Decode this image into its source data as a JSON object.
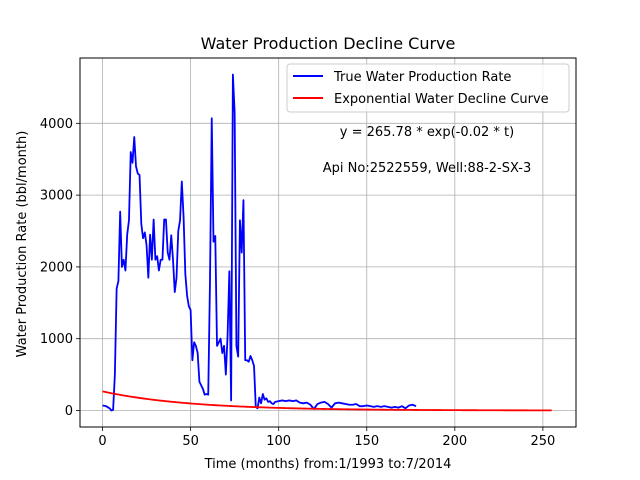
{
  "chart_data": {
    "type": "line",
    "title": "Water Production Decline Curve",
    "xlabel": "Time (months) from:1/1993 to:7/2014",
    "ylabel": "Water Production Rate (bbl/month)",
    "xlim": [
      -12.8,
      268.8
    ],
    "ylim": [
      -230,
      4910
    ],
    "xticks": [
      0,
      50,
      100,
      150,
      200,
      250
    ],
    "yticks": [
      0,
      1000,
      2000,
      3000,
      4000
    ],
    "grid": true,
    "legend_position": "top-right",
    "annotations": [
      "y = 265.78 * exp(-0.02 * t)",
      "Api No:2522559, Well:88-2-SX-3"
    ],
    "series": [
      {
        "name": "True Water Production Rate",
        "color": "#0000ff",
        "points": [
          [
            0,
            70
          ],
          [
            2,
            60
          ],
          [
            4,
            30
          ],
          [
            5,
            0
          ],
          [
            6,
            10
          ],
          [
            7,
            500
          ],
          [
            8,
            1700
          ],
          [
            9,
            1800
          ],
          [
            10,
            2770
          ],
          [
            11,
            2000
          ],
          [
            12,
            2100
          ],
          [
            13,
            1950
          ],
          [
            14,
            2450
          ],
          [
            15,
            2650
          ],
          [
            16,
            3600
          ],
          [
            17,
            3450
          ],
          [
            18,
            3810
          ],
          [
            19,
            3400
          ],
          [
            20,
            3300
          ],
          [
            21,
            3280
          ],
          [
            22,
            2600
          ],
          [
            23,
            2400
          ],
          [
            24,
            2480
          ],
          [
            25,
            2300
          ],
          [
            26,
            1850
          ],
          [
            27,
            2450
          ],
          [
            28,
            2100
          ],
          [
            29,
            2660
          ],
          [
            30,
            2100
          ],
          [
            31,
            2150
          ],
          [
            32,
            1950
          ],
          [
            33,
            2100
          ],
          [
            34,
            2100
          ],
          [
            35,
            2660
          ],
          [
            36,
            2660
          ],
          [
            37,
            2200
          ],
          [
            38,
            2100
          ],
          [
            39,
            2440
          ],
          [
            40,
            2100
          ],
          [
            41,
            1650
          ],
          [
            42,
            1850
          ],
          [
            43,
            2500
          ],
          [
            44,
            2650
          ],
          [
            45,
            3190
          ],
          [
            46,
            2700
          ],
          [
            47,
            1900
          ],
          [
            48,
            1600
          ],
          [
            49,
            1450
          ],
          [
            50,
            1400
          ],
          [
            51,
            700
          ],
          [
            52,
            950
          ],
          [
            53,
            900
          ],
          [
            54,
            800
          ],
          [
            55,
            400
          ],
          [
            56,
            350
          ],
          [
            57,
            300
          ],
          [
            58,
            220
          ],
          [
            59,
            230
          ],
          [
            60,
            220
          ],
          [
            61,
            1800
          ],
          [
            62,
            4070
          ],
          [
            63,
            2350
          ],
          [
            64,
            2430
          ],
          [
            65,
            900
          ],
          [
            66,
            950
          ],
          [
            67,
            1000
          ],
          [
            68,
            800
          ],
          [
            69,
            900
          ],
          [
            70,
            500
          ],
          [
            71,
            1050
          ],
          [
            72,
            1940
          ],
          [
            73,
            140
          ],
          [
            74,
            4680
          ],
          [
            75,
            4150
          ],
          [
            76,
            900
          ],
          [
            77,
            750
          ],
          [
            78,
            2650
          ],
          [
            79,
            2200
          ],
          [
            80,
            2930
          ],
          [
            81,
            700
          ],
          [
            82,
            700
          ],
          [
            83,
            680
          ],
          [
            84,
            760
          ],
          [
            85,
            700
          ],
          [
            86,
            620
          ],
          [
            87,
            50
          ],
          [
            88,
            30
          ],
          [
            89,
            180
          ],
          [
            90,
            100
          ],
          [
            91,
            230
          ],
          [
            92,
            150
          ],
          [
            93,
            170
          ],
          [
            94,
            120
          ],
          [
            95,
            130
          ],
          [
            96,
            100
          ],
          [
            97,
            90
          ],
          [
            98,
            120
          ],
          [
            100,
            130
          ],
          [
            102,
            140
          ],
          [
            104,
            130
          ],
          [
            106,
            140
          ],
          [
            108,
            130
          ],
          [
            110,
            140
          ],
          [
            112,
            110
          ],
          [
            114,
            100
          ],
          [
            116,
            110
          ],
          [
            118,
            80
          ],
          [
            120,
            20
          ],
          [
            122,
            90
          ],
          [
            124,
            110
          ],
          [
            126,
            120
          ],
          [
            128,
            90
          ],
          [
            130,
            40
          ],
          [
            132,
            100
          ],
          [
            134,
            110
          ],
          [
            136,
            100
          ],
          [
            138,
            90
          ],
          [
            140,
            80
          ],
          [
            142,
            80
          ],
          [
            144,
            90
          ],
          [
            146,
            60
          ],
          [
            148,
            60
          ],
          [
            150,
            70
          ],
          [
            152,
            60
          ],
          [
            154,
            50
          ],
          [
            156,
            60
          ],
          [
            158,
            50
          ],
          [
            160,
            60
          ],
          [
            162,
            50
          ],
          [
            164,
            40
          ],
          [
            166,
            50
          ],
          [
            168,
            40
          ],
          [
            170,
            60
          ],
          [
            172,
            30
          ],
          [
            174,
            70
          ],
          [
            176,
            80
          ],
          [
            178,
            60
          ]
        ]
      },
      {
        "name": "Exponential Water Decline Curve",
        "color": "#ff0000",
        "model": {
          "a": 265.78,
          "b": 0.02
        },
        "x_range": [
          0,
          255
        ]
      }
    ]
  }
}
